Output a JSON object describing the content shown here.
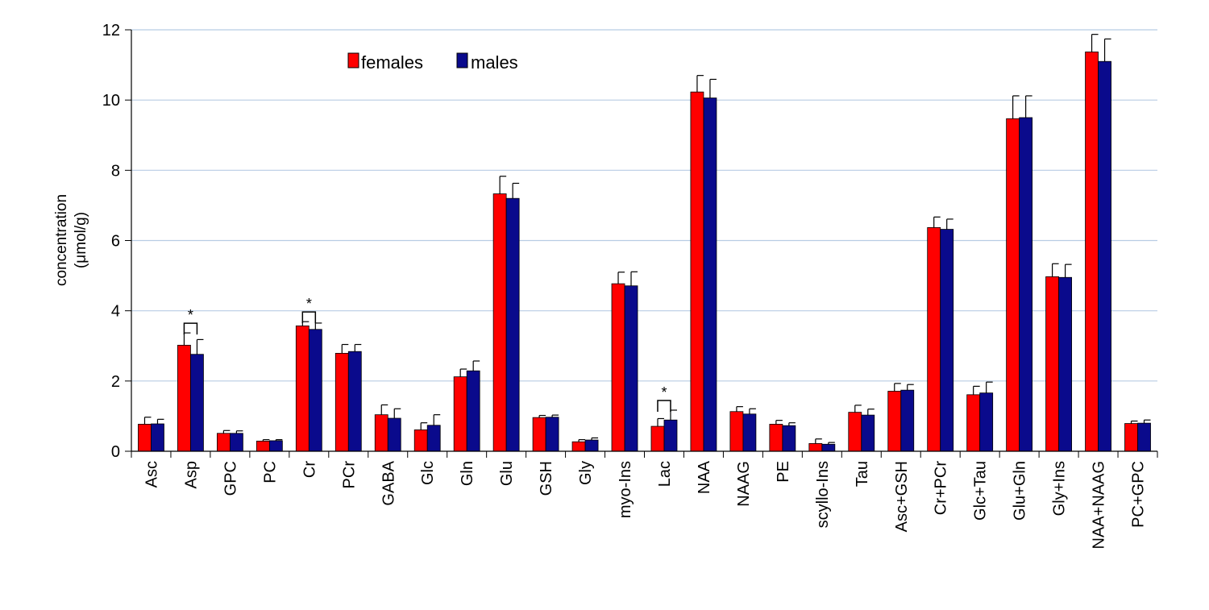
{
  "chart_data": {
    "type": "bar",
    "ylabel_line1": "concentration",
    "ylabel_line2": "(μmol/g)",
    "ylim": [
      0,
      12
    ],
    "yticks": [
      0,
      2,
      4,
      6,
      8,
      10,
      12
    ],
    "grid": true,
    "legend_position": "top-left",
    "categories": [
      "Asc",
      "Asp",
      "GPC",
      "PC",
      "Cr",
      "PCr",
      "GABA",
      "Glc",
      "Gln",
      "Glu",
      "GSH",
      "Gly",
      "myo-Ins",
      "Lac",
      "NAA",
      "NAAG",
      "PE",
      "scyllo-Ins",
      "Tau",
      "Asc+GSH",
      "Cr+PCr",
      "Glc+Tau",
      "Glu+Gln",
      "Gly+Ins",
      "NAA+NAAG",
      "PC+GPC"
    ],
    "series": [
      {
        "name": "females",
        "color": "#ff0000",
        "values": [
          0.77,
          3.02,
          0.51,
          0.29,
          3.57,
          2.79,
          1.04,
          0.61,
          2.12,
          7.33,
          0.96,
          0.27,
          4.77,
          0.71,
          10.23,
          1.13,
          0.77,
          0.22,
          1.11,
          1.71,
          6.37,
          1.61,
          9.47,
          4.97,
          11.37,
          0.79
        ],
        "errors": [
          0.2,
          0.35,
          0.08,
          0.04,
          0.12,
          0.25,
          0.28,
          0.2,
          0.22,
          0.5,
          0.06,
          0.06,
          0.33,
          0.22,
          0.47,
          0.14,
          0.11,
          0.13,
          0.2,
          0.22,
          0.3,
          0.24,
          0.65,
          0.37,
          0.5,
          0.07
        ]
      },
      {
        "name": "males",
        "color": "#0a0a8c",
        "values": [
          0.78,
          2.76,
          0.51,
          0.3,
          3.47,
          2.84,
          0.94,
          0.74,
          2.29,
          7.2,
          0.97,
          0.32,
          4.71,
          0.89,
          10.06,
          1.06,
          0.73,
          0.2,
          1.03,
          1.74,
          6.32,
          1.66,
          9.5,
          4.95,
          11.1,
          0.8
        ],
        "errors": [
          0.13,
          0.42,
          0.07,
          0.03,
          0.18,
          0.2,
          0.27,
          0.3,
          0.28,
          0.43,
          0.06,
          0.06,
          0.4,
          0.28,
          0.53,
          0.15,
          0.08,
          0.05,
          0.17,
          0.16,
          0.29,
          0.31,
          0.62,
          0.37,
          0.64,
          0.09
        ]
      }
    ],
    "significance": [
      {
        "category": "Asp",
        "label": "*"
      },
      {
        "category": "Cr",
        "label": "*"
      },
      {
        "category": "Lac",
        "label": "*"
      }
    ]
  }
}
